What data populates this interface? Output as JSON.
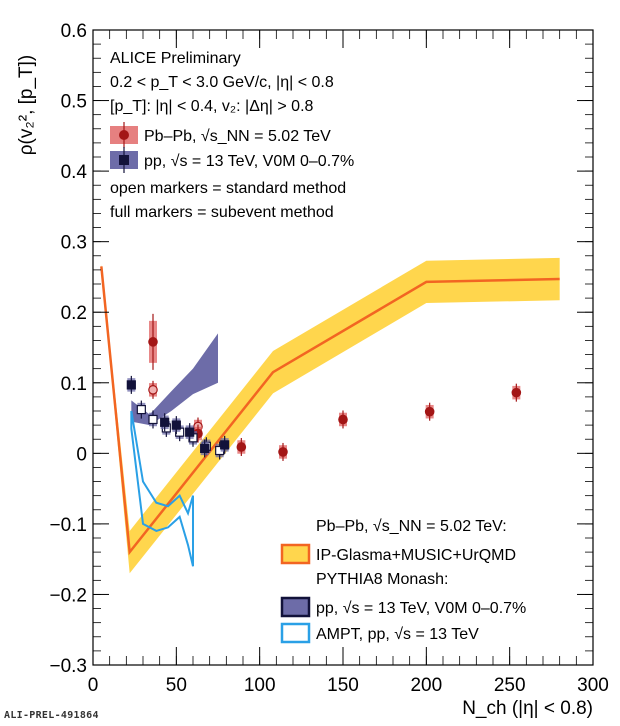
{
  "chart_data": {
    "type": "line",
    "title": "ALICE Preliminary",
    "xlabel": "N_ch (|η| < 0.8)",
    "ylabel": "ρ(v₂², [p_T])",
    "xlim": [
      0,
      300
    ],
    "ylim": [
      -0.3,
      0.6
    ],
    "x_ticks": [
      0,
      50,
      100,
      150,
      200,
      250,
      300
    ],
    "y_ticks": [
      -0.3,
      -0.2,
      -0.1,
      0,
      0.1,
      0.2,
      0.3,
      0.4,
      0.5,
      0.6
    ],
    "header_lines": [
      "ALICE Preliminary",
      "0.2 < p_T < 3.0 GeV/c, |η| < 0.8",
      "[p_T]: |η| < 0.4, v₂: |Δη| > 0.8"
    ],
    "notes": [
      "open markers = standard method",
      "full markers = subevent method"
    ],
    "model_header_1": "Pb–Pb, √s_NN = 5.02 TeV:",
    "model_header_2": "PYTHIA8 Monash:",
    "series": [
      {
        "name": "Pb–Pb, √s_NN = 5.02 TeV",
        "kind": "points",
        "color": "#a31616",
        "full": {
          "x": [
            36,
            63,
            89,
            114,
            150,
            202,
            254
          ],
          "y": [
            0.158,
            0.028,
            0.009,
            0.002,
            0.048,
            0.059,
            0.086
          ]
        },
        "open": {
          "x": [
            36,
            63
          ],
          "y": [
            0.09,
            0.038
          ]
        }
      },
      {
        "name": "pp, √s = 13 TeV, V0M 0–0.7%",
        "kind": "points",
        "color": "#12123a",
        "full": {
          "x": [
            23,
            43,
            50,
            58,
            67,
            79
          ],
          "y": [
            0.097,
            0.044,
            0.04,
            0.03,
            0.007,
            0.012
          ]
        },
        "open": {
          "x": [
            29,
            36,
            44,
            52,
            60,
            68,
            76
          ],
          "y": [
            0.062,
            0.048,
            0.036,
            0.03,
            0.022,
            0.01,
            0.004
          ]
        }
      },
      {
        "name": "IP-Glasma+MUSIC+UrQMD",
        "kind": "band",
        "line_color": "#f26522",
        "fill_color": "#ffd64d",
        "x": [
          5,
          22,
          108,
          200,
          280
        ],
        "y": [
          0.265,
          -0.14,
          0.115,
          0.243,
          0.247
        ],
        "y_low": [
          0.262,
          -0.17,
          0.085,
          0.213,
          0.217
        ],
        "y_high": [
          0.268,
          -0.11,
          0.145,
          0.273,
          0.277
        ]
      },
      {
        "name": "pp, √s = 13 TeV, V0M 0–0.7%",
        "kind": "band",
        "fill_color": "#6d6ca8",
        "x": [
          23,
          34,
          47,
          60,
          75
        ],
        "y_low": [
          0.045,
          0.04,
          0.06,
          0.084,
          0.1
        ],
        "y_high": [
          0.075,
          0.055,
          0.088,
          0.12,
          0.17
        ]
      },
      {
        "name": "AMPT, pp, √s = 13 TeV",
        "kind": "band_outline",
        "line_color": "#2aa0e6",
        "x": [
          23,
          30,
          38,
          45,
          52,
          57,
          60
        ],
        "y_low": [
          0.035,
          -0.1,
          -0.11,
          -0.105,
          -0.09,
          -0.13,
          -0.16
        ],
        "y_high": [
          0.06,
          -0.04,
          -0.07,
          -0.075,
          -0.06,
          -0.085,
          -0.06
        ]
      }
    ]
  },
  "legend": {
    "pbpb_label": "Pb–Pb, √s_NN = 5.02 TeV",
    "pp_label": "pp, √s = 13 TeV, V0M 0–0.7%",
    "model_ip_label": "IP-Glasma+MUSIC+UrQMD",
    "model_pythia_label": "pp, √s = 13 TeV, V0M 0–0.7%",
    "model_ampt_label": "AMPT, pp, √s = 13 TeV"
  },
  "reference": "ALI-PREL-491864"
}
